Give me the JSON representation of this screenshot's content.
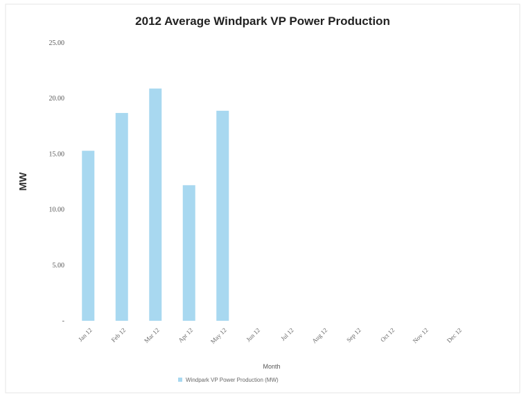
{
  "chart_data": {
    "type": "bar",
    "title": "2012 Average Windpark VP Power Production",
    "xlabel": "Month",
    "ylabel": "MW",
    "categories": [
      "Jan 12",
      "Feb 12",
      "Mar 12",
      "Apr 12",
      "May 12",
      "Jun 12",
      "Jul 12",
      "Aug 12",
      "Sep 12",
      "Oct 12",
      "Nov 12",
      "Dec 12"
    ],
    "series": [
      {
        "name": "Windpark VP Power Production (MW)",
        "color": "#a8d8f0",
        "values": [
          15.3,
          18.7,
          20.9,
          12.2,
          18.9,
          null,
          null,
          null,
          null,
          null,
          null,
          null
        ]
      }
    ],
    "ylim": [
      0,
      25
    ],
    "yticks": [
      "-",
      "5.00",
      "10.00",
      "15.00",
      "20.00",
      "25.00"
    ],
    "grid": false,
    "legend_position": "bottom"
  }
}
